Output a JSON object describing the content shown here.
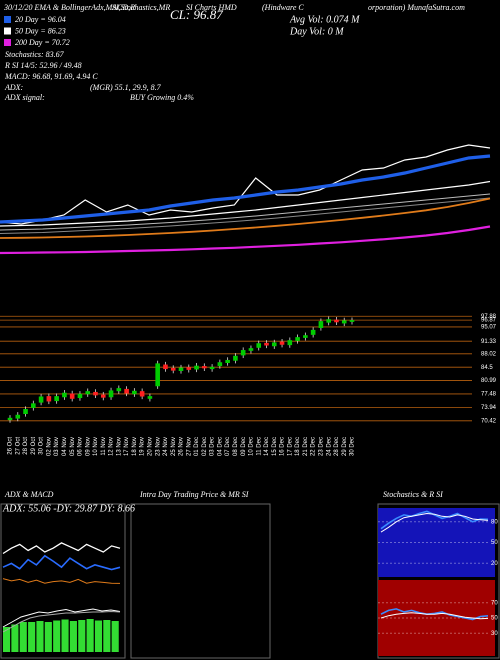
{
  "header": [
    "30/12/20  EMA & BollingerAdx,MACD,R",
    "SI,Stochastics,MR",
    "SI Charts HMD",
    "(Hindware C",
    "orporation) MunafaSutra.com"
  ],
  "info": {
    "close": "CL: 96.87",
    "avg_vol": "Avg Vol: 0.074  M",
    "day_vol": "Day Vol: 0  M",
    "stochastics": "Stochastics: 83.67",
    "rsi": "R      SI 14/5: 52.96  / 49.48",
    "macd": "MACD: 96.68, 91.69, 4.94 C",
    "adx_label": "ADX:",
    "adx_values": "(MGR) 55.1, 29.9, 8.7",
    "adx_signal_label": "ADX  signal:",
    "adx_signal": "BUY Growing 0.4%"
  },
  "panels": {
    "intraday": "Intra Day Trading Price  & MR SI"
  },
  "chart_data": [
    {
      "type": "line",
      "ylim": [
        45,
        105
      ],
      "series": [
        {
          "color": "#ffffff",
          "values": [
            64.2,
            63.4,
            65,
            67,
            73,
            68.2,
            71,
            67,
            69,
            68.2,
            69.8,
            71,
            81.8,
            75,
            75,
            77,
            81,
            85,
            85.8,
            89,
            90.2,
            93,
            95,
            93.8
          ]
        },
        {
          "name": "20 Day = 96.04",
          "color": "#1f5fe8",
          "values": [
            64.2,
            64.6,
            65,
            65.8,
            66.6,
            67.4,
            68.2,
            69,
            70.6,
            71.8,
            73,
            73.8,
            75,
            76.2,
            77,
            78.2,
            79.4,
            81,
            82.2,
            83.8,
            85.8,
            87.8,
            89.8,
            90.6
          ]
        },
        {
          "name": "50 Day = 86.23",
          "color": "#ffffff",
          "values": [
            62.6,
            62.8,
            63,
            63.4,
            63.8,
            64.2,
            64.6,
            65.2,
            65.8,
            66.6,
            67.4,
            68.2,
            69,
            70,
            71,
            72,
            73,
            74,
            75,
            76,
            77,
            78,
            79,
            80.4
          ]
        },
        {
          "color": "#bbbbbb",
          "values": [
            61,
            61.2,
            61.4,
            61.8,
            62.2,
            62.6,
            63,
            63.5,
            64,
            64.6,
            65.2,
            65.9,
            66.6,
            67.4,
            68.2,
            69,
            69.8,
            70.6,
            71.4,
            72.2,
            73,
            73.8,
            74.6,
            75.4
          ]
        },
        {
          "color": "#888888",
          "values": [
            59.6,
            59.8,
            60,
            60.4,
            60.8,
            61.2,
            61.6,
            62.1,
            62.6,
            63.2,
            63.8,
            64.4,
            65.1,
            65.8,
            66.6,
            67.4,
            68.2,
            69,
            69.8,
            70.6,
            71.4,
            72.2,
            73,
            73.8
          ]
        },
        {
          "color": "#e07b1a",
          "values": [
            57.8,
            57.9,
            58,
            58.2,
            58.4,
            58.7,
            59,
            59.4,
            59.8,
            60.3,
            60.8,
            61.4,
            62,
            62.7,
            63.4,
            64.2,
            65,
            65.9,
            66.8,
            67.8,
            68.9,
            70.2,
            71.8,
            73.6
          ]
        },
        {
          "name": "200 Day = 70.72",
          "color": "#e020e0",
          "values": [
            51.8,
            51.9,
            52,
            52.1,
            52.2,
            52.4,
            52.6,
            52.8,
            53,
            53.3,
            53.6,
            53.9,
            54.3,
            54.7,
            55.1,
            55.6,
            56.1,
            56.7,
            57.3,
            58,
            58.8,
            59.8,
            61,
            62.4
          ]
        }
      ]
    },
    {
      "type": "candlestick",
      "ylim": [
        68,
        99
      ],
      "yticks": [
        97.88,
        96.87,
        95.07,
        91.33,
        88.02,
        84.5,
        80.99,
        77.48,
        73.94,
        70.42
      ],
      "up_color": "#00cc00",
      "down_color": "#ff2020",
      "grid_color": "#b8600f",
      "categories": [
        "26 Oct",
        "27 Oct",
        "28 Oct",
        "29 Oct",
        "30 Oct",
        "02 Nov",
        "03 Nov",
        "04 Nov",
        "05 Nov",
        "06 Nov",
        "09 Nov",
        "10 Nov",
        "11 Nov",
        "12 Nov",
        "13 Nov",
        "17 Nov",
        "18 Nov",
        "19 Nov",
        "20 Nov",
        "23 Nov",
        "24 Nov",
        "25 Nov",
        "26 Nov",
        "27 Nov",
        "01 Dec",
        "02 Dec",
        "03 Dec",
        "04 Dec",
        "07 Dec",
        "08 Dec",
        "09 Dec",
        "10 Dec",
        "11 Dec",
        "14 Dec",
        "15 Dec",
        "16 Dec",
        "17 Dec",
        "18 Dec",
        "21 Dec",
        "22 Dec",
        "23 Dec",
        "24 Dec",
        "28 Dec",
        "29 Dec",
        "30 Dec"
      ],
      "open": [
        70.6,
        71.0,
        72.2,
        73.8,
        75.2,
        76.9,
        75.6,
        76.6,
        77.6,
        76.4,
        77.4,
        78.0,
        77.3,
        76.6,
        78.2,
        78.8,
        77.4,
        78.2,
        76.2,
        79.5,
        85.2,
        84.3,
        83.5,
        84.5,
        83.9,
        84.8,
        84.0,
        84.8,
        85.6,
        86.2,
        87.6,
        88.8,
        89.6,
        90.9,
        90.0,
        91.2,
        90.3,
        91.4,
        92.2,
        93.0,
        94.8,
        96.2,
        97.0,
        96.0,
        96.4
      ],
      "high": [
        71.9,
        72.7,
        74.2,
        75.7,
        77.5,
        77.6,
        77.6,
        78.5,
        78.3,
        78.2,
        78.9,
        78.7,
        78.0,
        79.1,
        79.7,
        79.5,
        79.0,
        78.9,
        77.6,
        86.2,
        85.9,
        85.0,
        85.1,
        85.2,
        85.6,
        85.5,
        85.3,
        86.5,
        87.1,
        88.2,
        89.7,
        90.2,
        91.5,
        91.6,
        91.7,
        91.9,
        92.3,
        93.1,
        93.6,
        95.0,
        97.3,
        97.8,
        97.7,
        97.5,
        97.57
      ],
      "low": [
        69.9,
        70.3,
        71.5,
        73.1,
        74.5,
        74.8,
        74.9,
        75.9,
        75.5,
        75.7,
        76.7,
        76.4,
        75.8,
        75.9,
        77.5,
        76.9,
        76.7,
        76.1,
        75.5,
        78.8,
        83.3,
        82.9,
        82.8,
        83.1,
        83.2,
        83.5,
        83.3,
        84.1,
        84.9,
        85.5,
        86.9,
        88.1,
        88.9,
        89.5,
        89.3,
        89.7,
        89.6,
        90.7,
        91.5,
        92.3,
        94.1,
        95.5,
        95.6,
        95.3,
        95.7
      ],
      "close": [
        71.2,
        72.0,
        73.5,
        75.0,
        76.8,
        75.5,
        76.9,
        77.8,
        76.2,
        77.5,
        78.2,
        77.1,
        76.5,
        78.4,
        79.0,
        77.6,
        78.3,
        76.8,
        76.9,
        85.5,
        84.0,
        83.6,
        84.4,
        83.8,
        84.9,
        84.2,
        84.6,
        85.8,
        86.4,
        87.5,
        89.0,
        89.5,
        90.8,
        90.2,
        91.0,
        90.4,
        91.6,
        92.4,
        92.9,
        94.3,
        96.6,
        97.1,
        96.3,
        96.8,
        96.87
      ]
    },
    {
      "type": "line",
      "title": "ADX  & MACD",
      "subtitle": "ADX: 55.06  -DY: 29.87  DY: 8.66",
      "ylim": [
        0,
        100
      ],
      "series": [
        {
          "color": "#ffffff",
          "values": [
            48,
            55,
            60,
            52,
            58,
            50,
            55,
            62,
            57,
            52,
            60,
            55,
            50,
            58,
            55.06
          ]
        },
        {
          "color": "#2a6cff",
          "values": [
            30,
            35,
            28,
            40,
            33,
            45,
            38,
            30,
            42,
            35,
            28,
            33,
            30,
            27,
            29.87
          ]
        },
        {
          "color": "#e07b1a",
          "values": [
            15,
            12,
            14,
            10,
            13,
            9,
            11,
            12,
            10,
            14,
            9,
            11,
            10,
            9,
            8.66
          ]
        }
      ]
    },
    {
      "type": "macd",
      "ylim": [
        0,
        10
      ],
      "histogram": {
        "color": "#33dd33",
        "values": [
          5,
          5.5,
          6,
          6,
          6.2,
          6,
          6.3,
          6.5,
          6.2,
          6.4,
          6.6,
          6.3,
          6.4,
          6.2
        ]
      },
      "series": [
        {
          "color": "#ffffff",
          "values": [
            5,
            6,
            7,
            7.5,
            8,
            7.8,
            8.2,
            8.5,
            8,
            8.3,
            8.6,
            8.2,
            8.4,
            8.1
          ]
        },
        {
          "color": "#aaaaaa",
          "values": [
            4,
            5,
            6,
            6.8,
            7.2,
            7.4,
            7.6,
            7.8,
            7.8,
            7.9,
            8,
            8,
            8.1,
            8
          ]
        }
      ]
    },
    {
      "type": "line",
      "title": "Stochastics & R SI",
      "ylim": [
        0,
        100
      ],
      "yticks": [
        80,
        50,
        20
      ],
      "background": "#1414b8",
      "series": [
        {
          "color": "#3a8cff",
          "values": [
            70,
            78,
            85,
            90,
            88,
            92,
            95,
            90,
            85,
            88,
            92,
            86,
            80,
            84,
            83.67
          ]
        },
        {
          "color": "#ffffff",
          "values": [
            65,
            72,
            80,
            86,
            88,
            90,
            92,
            91,
            88,
            87,
            90,
            88,
            84,
            83,
            82
          ]
        }
      ]
    },
    {
      "type": "line",
      "ylim": [
        0,
        100
      ],
      "yticks": [
        70,
        50,
        30
      ],
      "background": "#a00000",
      "series": [
        {
          "color": "#3a8cff",
          "values": [
            55,
            60,
            62,
            58,
            60,
            57,
            55,
            56,
            58,
            54,
            52,
            50,
            48,
            52,
            52.96
          ]
        },
        {
          "color": "#ffffff",
          "values": [
            50,
            53,
            55,
            56,
            57,
            56,
            55,
            55,
            56,
            55,
            53,
            51,
            50,
            49,
            49.48
          ]
        }
      ]
    }
  ]
}
